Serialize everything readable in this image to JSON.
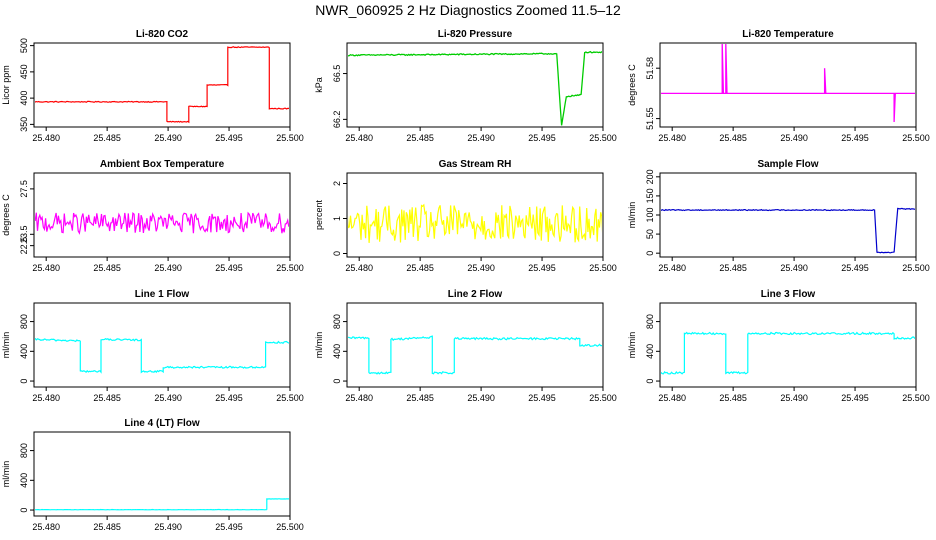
{
  "page": {
    "title": "NWR_060925  2 Hz Diagnostics Zoomed 11.5–12"
  },
  "colors": {
    "red": "#ff0000",
    "green": "#00cc00",
    "magenta": "#ff00ff",
    "yellow": "#ffff00",
    "blue": "#0000cc",
    "cyan": "#00ffff"
  },
  "chart_data": [
    {
      "type": "line",
      "title": "Li-820 CO2",
      "ylabel": "Licor ppm",
      "xlabel": "",
      "xlim": [
        25.479,
        25.5
      ],
      "ylim": [
        345,
        505
      ],
      "xticks": [
        25.48,
        25.485,
        25.49,
        25.495,
        25.5
      ],
      "yticks": [
        350,
        400,
        450,
        500
      ],
      "color": "red",
      "noise": 0.8,
      "series": [
        {
          "name": "Li-820 CO2",
          "steps": [
            [
              25.479,
              393
            ],
            [
              25.4899,
              393
            ],
            [
              25.4899,
              355
            ],
            [
              25.4917,
              355
            ],
            [
              25.4917,
              384
            ],
            [
              25.4932,
              384
            ],
            [
              25.4932,
              425
            ],
            [
              25.4949,
              425
            ],
            [
              25.4949,
              497
            ],
            [
              25.4983,
              497
            ],
            [
              25.4983,
              380
            ],
            [
              25.5,
              380
            ]
          ]
        }
      ]
    },
    {
      "type": "line",
      "title": "Li-820 Pressure",
      "ylabel": "kPa",
      "xlabel": "",
      "xlim": [
        25.479,
        25.5
      ],
      "ylim": [
        66.15,
        66.7
      ],
      "xticks": [
        25.48,
        25.485,
        25.49,
        25.495,
        25.5
      ],
      "yticks": [
        66.2,
        66.5
      ],
      "color": "green",
      "noise": 0.004,
      "series": [
        {
          "name": "Li-820 Pressure",
          "steps": [
            [
              25.479,
              66.62
            ],
            [
              25.4962,
              66.63
            ],
            [
              25.4966,
              66.16
            ],
            [
              25.497,
              66.35
            ],
            [
              25.4982,
              66.36
            ],
            [
              25.4985,
              66.64
            ],
            [
              25.5,
              66.64
            ]
          ]
        }
      ]
    },
    {
      "type": "line",
      "title": "Li-820 Temperature",
      "ylabel": "degrees C",
      "xlabel": "",
      "xlim": [
        25.479,
        25.5
      ],
      "ylim": [
        51.545,
        51.595
      ],
      "xticks": [
        25.48,
        25.485,
        25.49,
        25.495,
        25.5
      ],
      "yticks": [
        51.55,
        51.58
      ],
      "color": "magenta",
      "noise": 0,
      "series": [
        {
          "name": "Li-820 Temperature",
          "steps": [
            [
              25.479,
              51.565
            ],
            [
              25.4841,
              51.565
            ],
            [
              25.4841,
              51.595
            ],
            [
              25.4842,
              51.565
            ],
            [
              25.4844,
              51.565
            ],
            [
              25.4844,
              51.595
            ],
            [
              25.4845,
              51.565
            ],
            [
              25.4925,
              51.565
            ],
            [
              25.4925,
              51.58
            ],
            [
              25.4926,
              51.565
            ],
            [
              25.4982,
              51.565
            ],
            [
              25.4982,
              51.548
            ],
            [
              25.4983,
              51.565
            ],
            [
              25.5,
              51.565
            ]
          ]
        }
      ]
    },
    {
      "type": "line",
      "title": "Ambient Box Temperature",
      "ylabel": "degrees C",
      "xlabel": "",
      "xlim": [
        25.479,
        25.5
      ],
      "ylim": [
        21.5,
        28.9
      ],
      "xticks": [
        25.48,
        25.485,
        25.49,
        25.495,
        25.5
      ],
      "yticks": [
        22.5,
        23.5,
        27.5
      ],
      "color": "magenta",
      "noise": 0.9,
      "series": [
        {
          "name": "Ambient Box Temperature",
          "steps": [
            [
              25.479,
              24.5
            ],
            [
              25.5,
              24.5
            ]
          ]
        }
      ]
    },
    {
      "type": "line",
      "title": "Gas Stream RH",
      "ylabel": "percent",
      "xlabel": "",
      "xlim": [
        25.479,
        25.5
      ],
      "ylim": [
        -0.1,
        2.3
      ],
      "xticks": [
        25.48,
        25.485,
        25.49,
        25.495,
        25.5
      ],
      "yticks": [
        0.0,
        1.0,
        2.0
      ],
      "color": "yellow",
      "noise": 0.55,
      "series": [
        {
          "name": "Gas Stream RH",
          "steps": [
            [
              25.479,
              0.85
            ],
            [
              25.5,
              0.85
            ]
          ]
        }
      ]
    },
    {
      "type": "line",
      "title": "Sample Flow",
      "ylabel": "ml/min",
      "xlabel": "",
      "xlim": [
        25.479,
        25.5
      ],
      "ylim": [
        -10,
        210
      ],
      "xticks": [
        25.48,
        25.485,
        25.49,
        25.495,
        25.5
      ],
      "yticks": [
        0,
        50,
        100,
        150,
        200
      ],
      "color": "blue",
      "noise": 1.2,
      "series": [
        {
          "name": "Sample Flow",
          "steps": [
            [
              25.479,
              113
            ],
            [
              25.4966,
              113
            ],
            [
              25.4968,
              2
            ],
            [
              25.4982,
              2
            ],
            [
              25.4985,
              116
            ],
            [
              25.5,
              116
            ]
          ]
        }
      ]
    },
    {
      "type": "line",
      "title": "Line 1 Flow",
      "ylabel": "ml/min",
      "xlabel": "",
      "xlim": [
        25.479,
        25.5
      ],
      "ylim": [
        -80,
        1050
      ],
      "xticks": [
        25.48,
        25.485,
        25.49,
        25.495,
        25.5
      ],
      "yticks": [
        0,
        400,
        800
      ],
      "color": "cyan",
      "noise": 12,
      "series": [
        {
          "name": "Line 1 Flow",
          "steps": [
            [
              25.479,
              560
            ],
            [
              25.4828,
              540
            ],
            [
              25.4828,
              130
            ],
            [
              25.4845,
              130
            ],
            [
              25.4845,
              560
            ],
            [
              25.4878,
              550
            ],
            [
              25.4878,
              130
            ],
            [
              25.4896,
              130
            ],
            [
              25.4896,
              185
            ],
            [
              25.498,
              185
            ],
            [
              25.498,
              520
            ],
            [
              25.5,
              520
            ]
          ]
        }
      ]
    },
    {
      "type": "line",
      "title": "Line 2 Flow",
      "ylabel": "ml/min",
      "xlabel": "",
      "xlim": [
        25.479,
        25.5
      ],
      "ylim": [
        -80,
        1050
      ],
      "xticks": [
        25.48,
        25.485,
        25.49,
        25.495,
        25.5
      ],
      "yticks": [
        0,
        400,
        800
      ],
      "color": "cyan",
      "noise": 14,
      "series": [
        {
          "name": "Line 2 Flow",
          "steps": [
            [
              25.479,
              580
            ],
            [
              25.4808,
              580
            ],
            [
              25.4808,
              110
            ],
            [
              25.4826,
              110
            ],
            [
              25.4826,
              560
            ],
            [
              25.486,
              590
            ],
            [
              25.486,
              110
            ],
            [
              25.4878,
              110
            ],
            [
              25.4878,
              570
            ],
            [
              25.4981,
              570
            ],
            [
              25.4981,
              480
            ],
            [
              25.5,
              480
            ]
          ]
        }
      ]
    },
    {
      "type": "line",
      "title": "Line 3 Flow",
      "ylabel": "ml/min",
      "xlabel": "",
      "xlim": [
        25.479,
        25.5
      ],
      "ylim": [
        -80,
        1050
      ],
      "xticks": [
        25.48,
        25.485,
        25.49,
        25.495,
        25.5
      ],
      "yticks": [
        0,
        400,
        800
      ],
      "color": "cyan",
      "noise": 14,
      "series": [
        {
          "name": "Line 3 Flow",
          "steps": [
            [
              25.479,
              110
            ],
            [
              25.481,
              110
            ],
            [
              25.481,
              640
            ],
            [
              25.4844,
              640
            ],
            [
              25.4844,
              110
            ],
            [
              25.4862,
              110
            ],
            [
              25.4862,
              640
            ],
            [
              25.4982,
              640
            ],
            [
              25.4982,
              580
            ],
            [
              25.5,
              580
            ]
          ]
        }
      ]
    },
    {
      "type": "line",
      "title": "Line 4 (LT) Flow",
      "ylabel": "ml/min",
      "xlabel": "",
      "xlim": [
        25.479,
        25.5
      ],
      "ylim": [
        -80,
        1050
      ],
      "xticks": [
        25.48,
        25.485,
        25.49,
        25.495,
        25.5
      ],
      "yticks": [
        0,
        400,
        800
      ],
      "color": "cyan",
      "noise": 2,
      "series": [
        {
          "name": "Line 4 (LT) Flow",
          "steps": [
            [
              25.479,
              5
            ],
            [
              25.4981,
              5
            ],
            [
              25.4981,
              150
            ],
            [
              25.5,
              150
            ]
          ]
        }
      ]
    }
  ]
}
